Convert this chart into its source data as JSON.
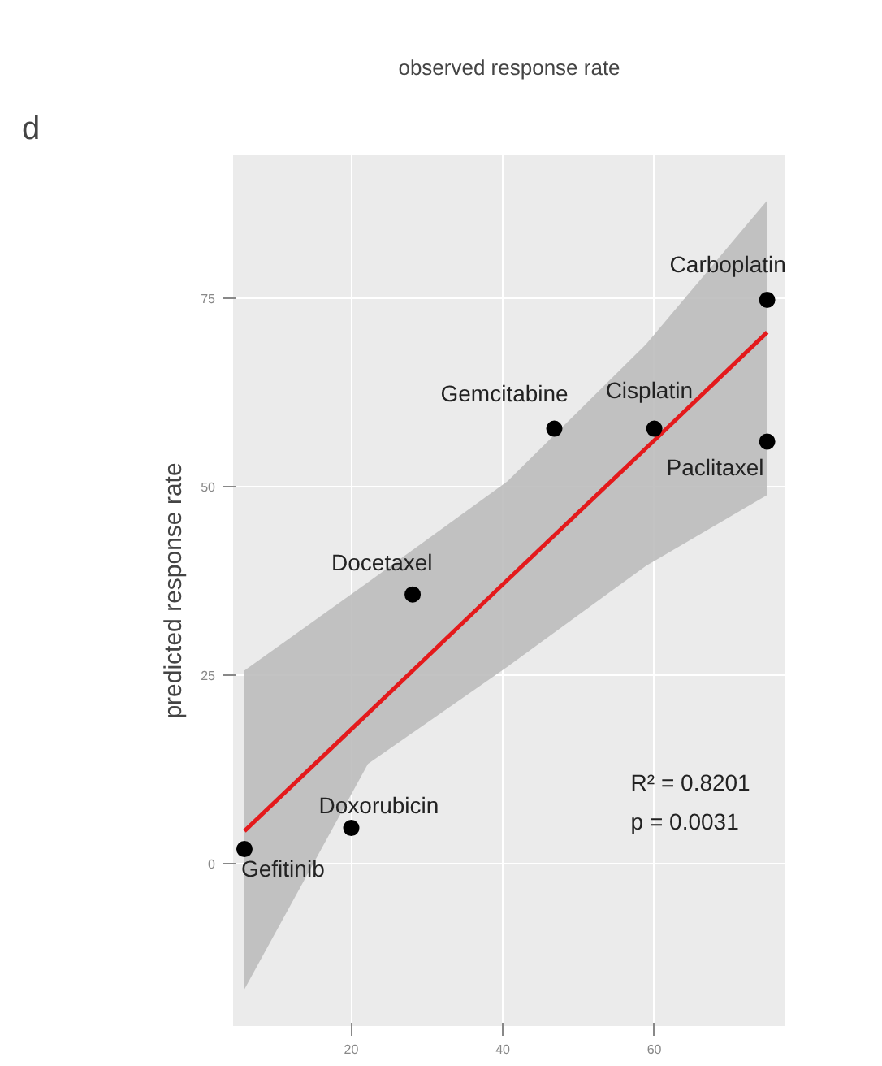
{
  "chart_data": {
    "type": "scatter",
    "title": "observed response rate",
    "ylabel": "predicted response rate",
    "xlim": [
      4.4,
      77.3
    ],
    "ylim": [
      -21.6,
      94
    ],
    "xticks": [
      20,
      40,
      60
    ],
    "yticks": [
      0,
      25,
      50,
      75
    ],
    "grid": true,
    "series": [
      {
        "type": "scatter",
        "color": "#000000",
        "marker": "circle",
        "x": [
          5.9,
          20,
          28.1,
          46.8,
          60,
          74.9,
          74.9
        ],
        "values": [
          1.9,
          4.7,
          35.7,
          57.7,
          57.7,
          74.8,
          56
        ]
      },
      {
        "type": "line",
        "color": "#e41a1c",
        "x": [
          5.9,
          22.2,
          40.6,
          58.9,
          74.9
        ],
        "values": [
          4.3,
          19.9,
          37.6,
          55.1,
          70.5
        ],
        "lower": [
          -16.7,
          13.2,
          26.1,
          39.5,
          48.9
        ],
        "upper": [
          25.6,
          37.3,
          50.7,
          68.9,
          88.0
        ]
      }
    ],
    "annotations": [
      "d",
      {
        "text": "Gefitinib",
        "x": 5.9,
        "y": 1.9
      },
      {
        "text": "Doxorubicin",
        "x": 20,
        "y": 4.7
      },
      {
        "text": "Docetaxel",
        "x": 28.1,
        "y": 35.7
      },
      {
        "text": "Gemcitabine",
        "x": 46.8,
        "y": 57.7
      },
      {
        "text": "Cisplatin",
        "x": 60,
        "y": 57.7
      },
      {
        "text": "Carboplatin",
        "x": 74.9,
        "y": 74.8
      },
      {
        "text": "Paclitaxel",
        "x": 74.9,
        "y": 56
      },
      "R² = 0.8201",
      "p = 0.0031"
    ]
  }
}
